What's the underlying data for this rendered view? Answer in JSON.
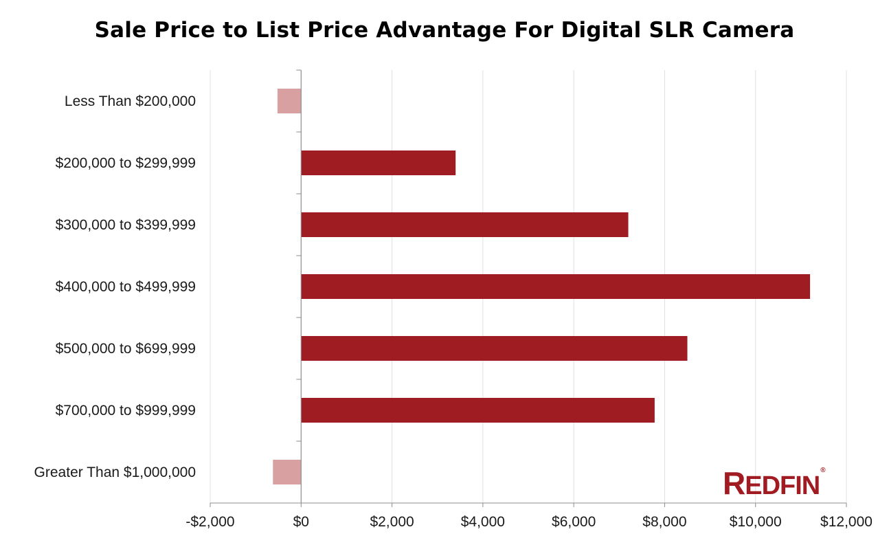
{
  "chart_data": {
    "type": "bar",
    "orientation": "horizontal",
    "title": "Sale Price to List Price Advantage For Digital SLR Camera",
    "xlabel": "",
    "ylabel": "",
    "categories": [
      "Less Than $200,000",
      "$200,000 to $299,999",
      "$300,000 to $399,999",
      "$400,000 to $499,999",
      "$500,000 to $699,999",
      "$700,000 to $999,999",
      "Greater Than $1,000,000"
    ],
    "values": [
      -520,
      3400,
      7200,
      11200,
      8500,
      7780,
      -620
    ],
    "xlim": [
      -2000,
      12000
    ],
    "xticks": [
      -2000,
      0,
      2000,
      4000,
      6000,
      8000,
      10000,
      12000
    ],
    "xtick_labels": [
      "-$2,000",
      "$0",
      "$2,000",
      "$4,000",
      "$6,000",
      "$8,000",
      "$10,000",
      "$12,000"
    ],
    "grid": "vertical",
    "legend": "none",
    "colors": {
      "positive": "#9e1c22",
      "negative": "#d9a0a2",
      "grid": "#e0e0e0",
      "axis": "#8c8c8c"
    }
  },
  "logo": {
    "text": "REDFIN"
  }
}
